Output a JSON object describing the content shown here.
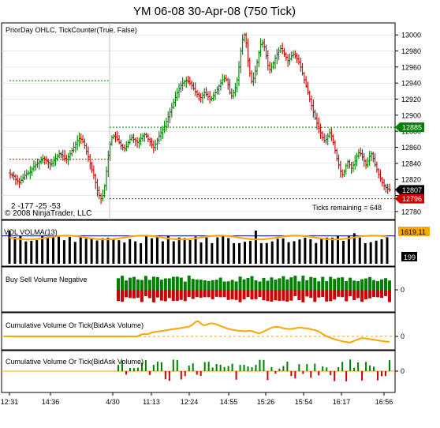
{
  "title": "YM 06-08  30-Apr-08 (750 Tick)",
  "colors": {
    "up": "#008000",
    "down": "#cc0000",
    "orange": "#ffa500",
    "navy": "#000080",
    "grid": "#d8d8d8",
    "last_label": "#000000",
    "close_label": "#cc0000",
    "pdh_label": "#008000"
  },
  "chart_data": [
    {
      "type": "ohlc",
      "label": "PriorDay OHLC,  TickCounter(True, False)",
      "copyright": "© 2008 NinjaTrader, LLC",
      "ticks_remaining": "Ticks remaining = 648",
      "prior_values_text": "2   -177   -25   -53",
      "y_ticks": [
        12780,
        12800,
        12820,
        12840,
        12860,
        12880,
        12900,
        12920,
        12940,
        12960,
        12980,
        13000
      ],
      "ylim": [
        12772,
        13012
      ],
      "markers": [
        {
          "label": "12885",
          "value": 12885
        },
        {
          "label": "12807",
          "value": 12807
        },
        {
          "label": "12796",
          "value": 12796
        }
      ],
      "levels": [
        {
          "name": "prior-day-high",
          "value": 12885
        },
        {
          "name": "prior-day-low",
          "value": 12796
        },
        {
          "name": "prior-day-close",
          "value": 12845
        },
        {
          "name": "prior-day-open",
          "value": 12943
        }
      ],
      "closes": [
        12826,
        12825,
        12824,
        12820,
        12818,
        12816,
        12819,
        12822,
        12825,
        12827,
        12828,
        12829,
        12833,
        12836,
        12838,
        12840,
        12842,
        12844,
        12846,
        12845,
        12843,
        12841,
        12839,
        12840,
        12843,
        12846,
        12849,
        12852,
        12851,
        12849,
        12846,
        12845,
        12848,
        12852,
        12856,
        12860,
        12864,
        12868,
        12871,
        12870,
        12867,
        12862,
        12855,
        12848,
        12840,
        12832,
        12825,
        12816,
        12806,
        12800,
        12796,
        12800,
        12812,
        12830,
        12850,
        12864,
        12872,
        12874,
        12873,
        12870,
        12866,
        12862,
        12860,
        12858,
        12861,
        12866,
        12870,
        12872,
        12870,
        12868,
        12866,
        12868,
        12871,
        12874,
        12876,
        12874,
        12870,
        12867,
        12863,
        12860,
        12864,
        12869,
        12874,
        12878,
        12882,
        12886,
        12892,
        12898,
        12904,
        12910,
        12916,
        12922,
        12928,
        12933,
        12937,
        12940,
        12942,
        12943,
        12942,
        12940,
        12937,
        12933,
        12929,
        12926,
        12924,
        12922,
        12925,
        12928,
        12926,
        12923,
        12920,
        12921,
        12924,
        12928,
        12932,
        12936,
        12940,
        12944,
        12946,
        12944,
        12938,
        12928,
        12924,
        12928,
        12934,
        12944,
        12960,
        12980,
        12994,
        13000,
        12990,
        12968,
        12952,
        12942,
        12946,
        12955,
        12966,
        12978,
        12988,
        12990,
        12985,
        12974,
        12962,
        12957,
        12960,
        12965,
        12971,
        12976,
        12980,
        12983,
        12980,
        12976,
        12972,
        12968,
        12970,
        12974,
        12976,
        12974,
        12970,
        12966,
        12960,
        12952,
        12944,
        12936,
        12928,
        12920,
        12912,
        12904,
        12896,
        12890,
        12884,
        12878,
        12872,
        12868,
        12870,
        12874,
        12878,
        12874,
        12866,
        12856,
        12846,
        12838,
        12830,
        12826,
        12830,
        12837,
        12842,
        12838,
        12834,
        12838,
        12843,
        12849,
        12853,
        12852,
        12848,
        12843,
        12838,
        12843,
        12849,
        12852,
        12846,
        12838,
        12832,
        12826,
        12821,
        12816,
        12812,
        12810,
        12808,
        12807
      ]
    },
    {
      "type": "bar",
      "label": "VOL   VOLMA(13)",
      "value_label": "1619.11",
      "marker_label": "199",
      "bars": 70,
      "ma_level": 0.8
    },
    {
      "type": "bar",
      "label": "Buy Sell Volume Negative",
      "zero_label": "0",
      "bars": 70
    },
    {
      "type": "line",
      "label": "Cumulative Volume Or Tick(BidAsk Volume)",
      "zero_label": "0",
      "values": [
        0,
        0,
        0,
        0,
        0,
        0,
        0,
        0,
        0,
        0,
        0,
        0,
        0,
        0,
        0,
        0,
        0,
        0,
        0,
        0,
        0,
        0,
        0,
        0,
        0,
        0,
        0,
        0,
        0,
        0,
        0,
        0,
        0,
        0,
        0,
        0,
        0,
        0,
        0,
        0,
        0,
        0,
        0,
        0,
        0,
        0,
        0,
        0,
        0,
        0,
        0,
        0.5,
        1,
        1.2,
        1,
        1.6,
        2,
        2.2,
        2.4,
        2.6,
        2.8,
        3,
        3.2,
        3.4,
        3.6,
        3.8,
        4,
        4.2,
        4.4,
        4.6,
        5,
        5.8,
        7,
        7.4,
        6.4,
        5.4,
        5.6,
        6.1,
        6.4,
        6.2,
        5.8,
        5.3,
        4.8,
        4.3,
        3.8,
        3.5,
        3.2,
        3,
        2.8,
        2.7,
        2.6,
        2.5,
        2.8,
        2.6,
        2.3,
        1.8,
        1.4,
        2,
        2.6,
        3.2,
        3.9,
        4.4,
        4.6,
        4.6,
        4.4,
        4,
        3.8,
        3.6,
        3.6,
        3.8,
        4.1,
        4.3,
        4.2,
        4,
        3.9,
        3.6,
        3.3,
        3,
        2.6,
        2,
        1,
        0.3,
        -0.3,
        -0.8,
        -1.2,
        -1.6,
        -2,
        -2.3,
        -2.6,
        -2.8,
        -3,
        -2.6,
        -2,
        -1.6,
        -1,
        -0.8,
        -1,
        -1.2,
        -1.4,
        -1.6,
        -1.8,
        -2,
        -2.2,
        -2.4,
        -2.6,
        -2.6
      ]
    },
    {
      "type": "bar",
      "label": "Cumulative Volume Or Tick(BidAsk Volume)",
      "zero_label": "0",
      "bars": 70
    }
  ],
  "x_axis": {
    "ticks": [
      "12:31",
      "14:36",
      "4/30",
      "11:13",
      "12:24",
      "14:55",
      "15:26",
      "15:54",
      "16:17",
      "16:56"
    ]
  }
}
